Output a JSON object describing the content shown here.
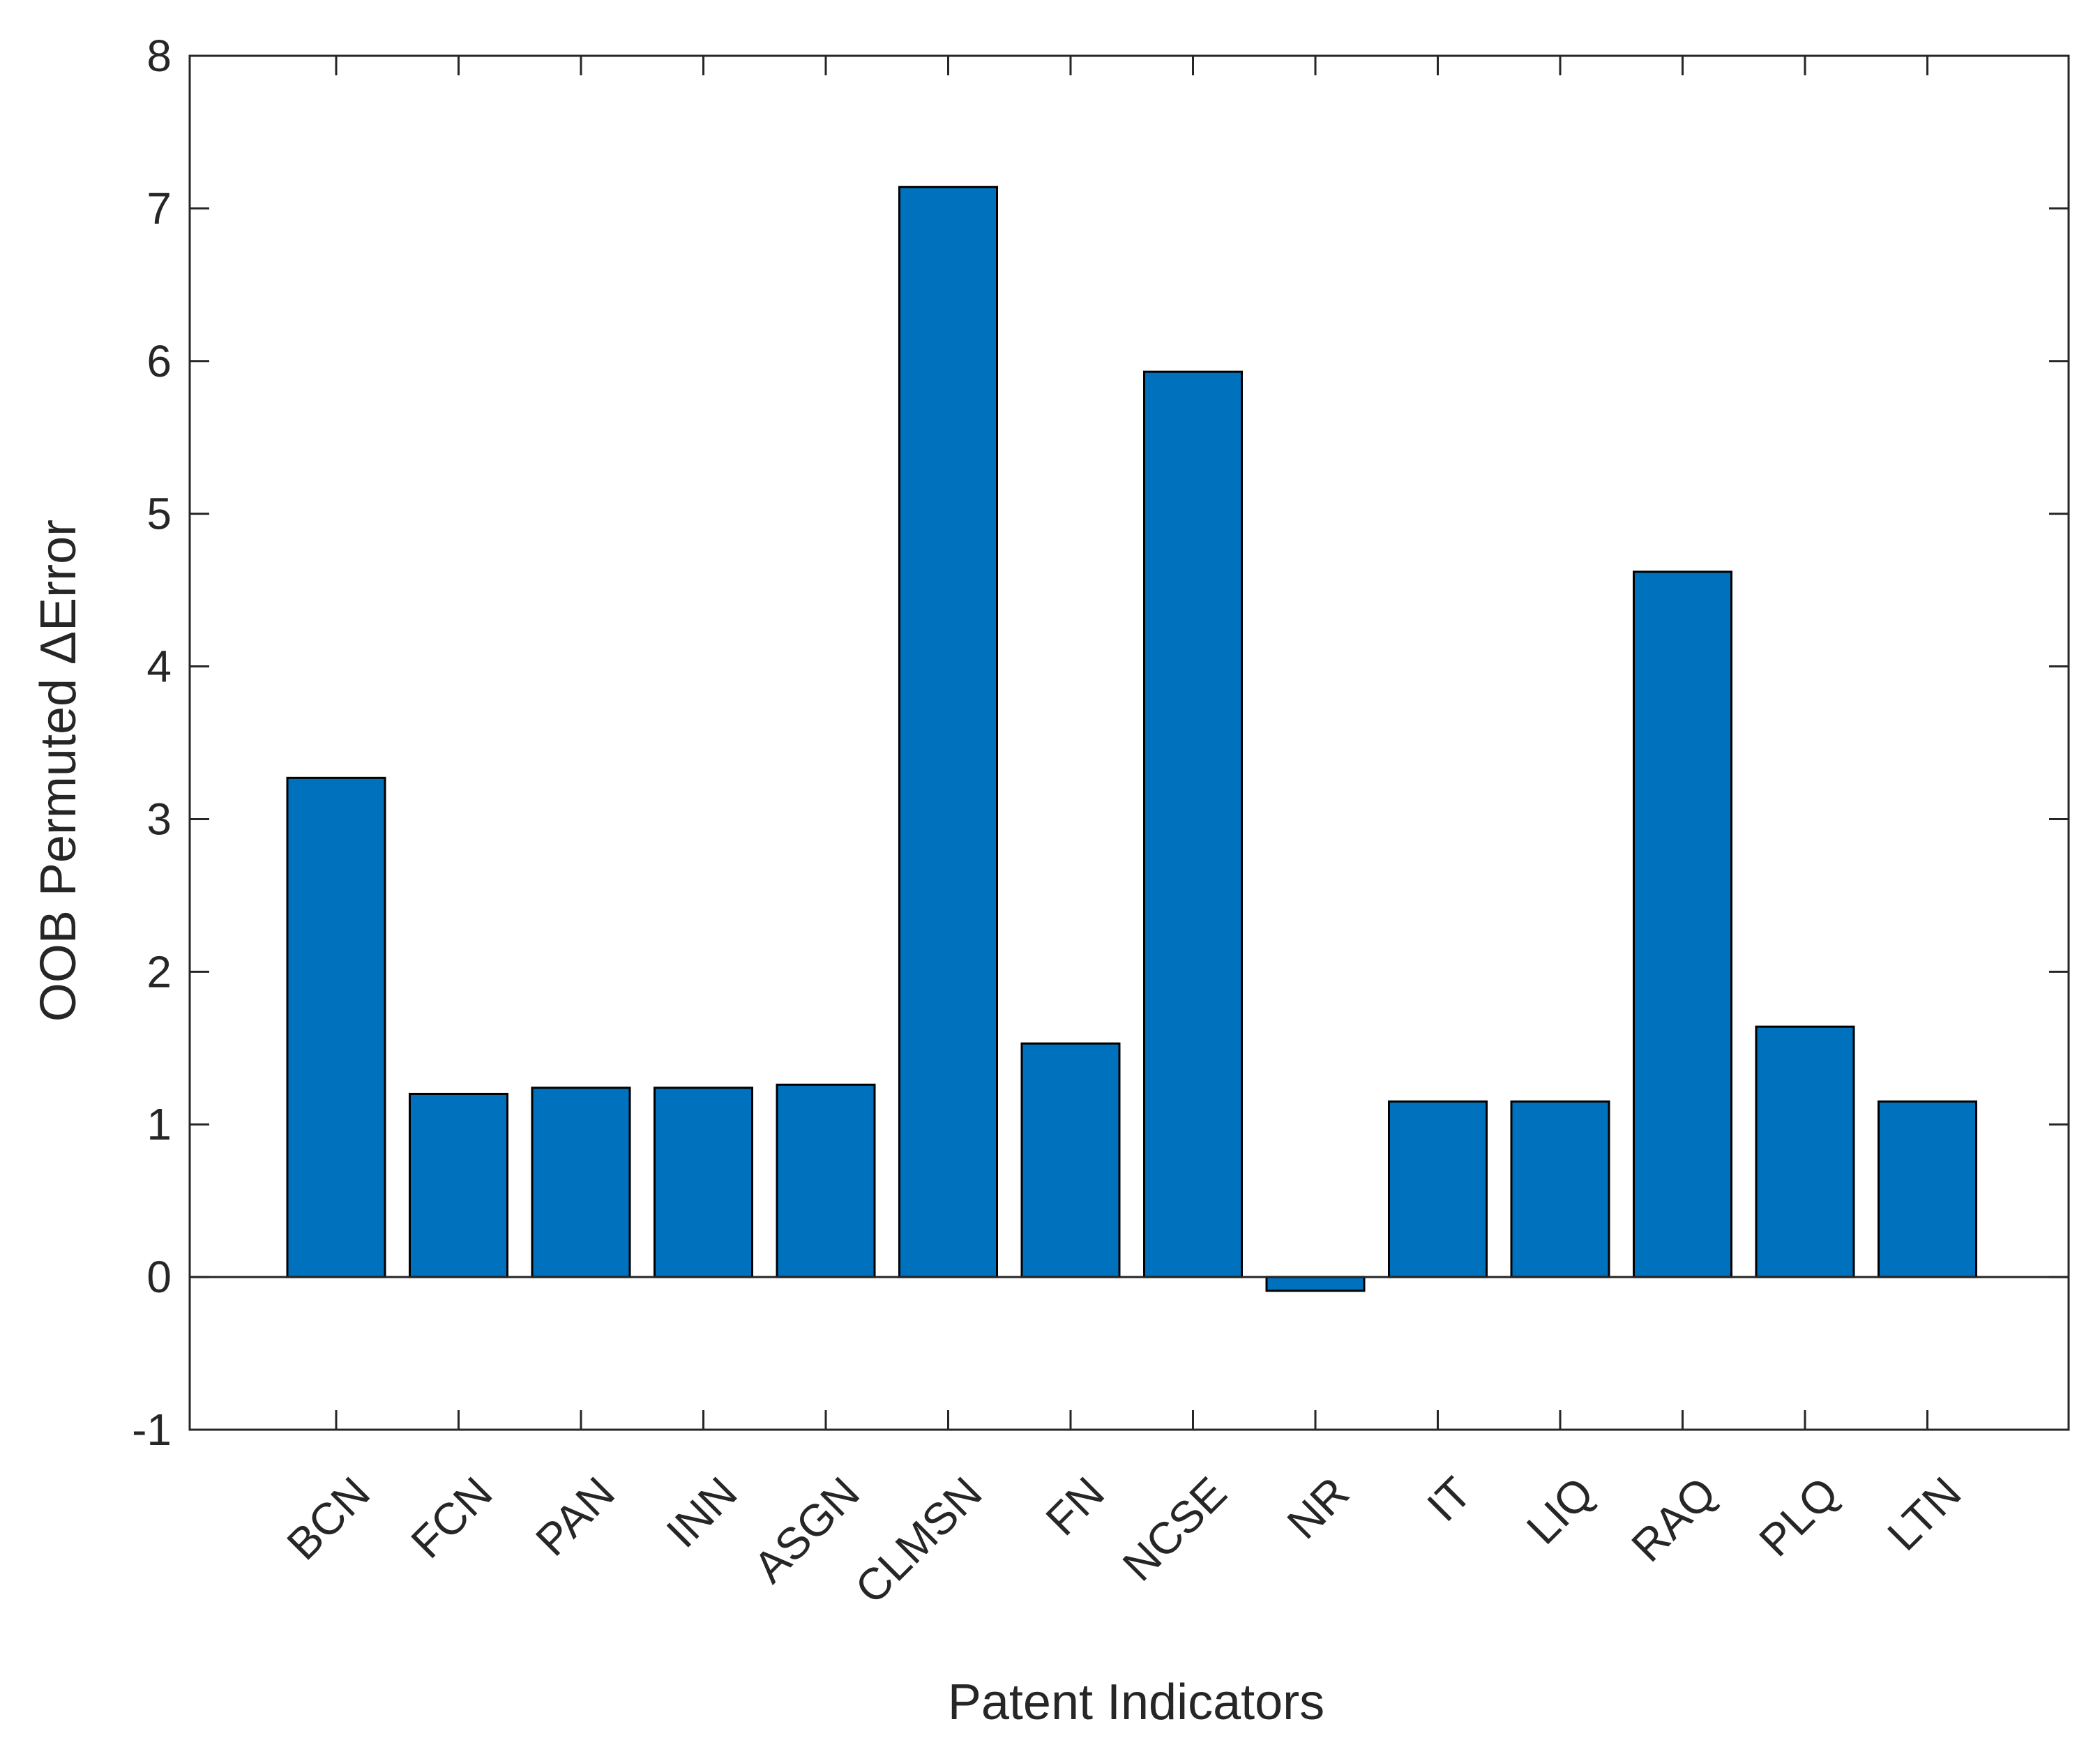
{
  "chart_data": {
    "type": "bar",
    "title": "",
    "xlabel": "Patent Indicators",
    "ylabel": "OOB Permuted ΔError",
    "categories": [
      "BCN",
      "FCN",
      "PAN",
      "INN",
      "ASGN",
      "CLMSN",
      "FN",
      "NCSE",
      "NR",
      "IT",
      "LIQ",
      "RAQ",
      "PLQ",
      "LTN"
    ],
    "values": [
      3.27,
      1.2,
      1.24,
      1.24,
      1.26,
      7.14,
      1.53,
      5.93,
      -0.09,
      1.15,
      1.15,
      4.62,
      1.64,
      1.15
    ],
    "ylim": [
      -1,
      8
    ],
    "yticks": [
      -1,
      0,
      1,
      2,
      3,
      4,
      5,
      6,
      7,
      8
    ],
    "ytick_labels": [
      "-1",
      "0",
      "1",
      "2",
      "3",
      "4",
      "5",
      "6",
      "7",
      "8"
    ],
    "bar_color": "#0072BD",
    "grid": false,
    "legend": "none"
  }
}
